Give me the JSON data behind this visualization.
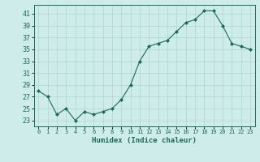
{
  "x": [
    0,
    1,
    2,
    3,
    4,
    5,
    6,
    7,
    8,
    9,
    10,
    11,
    12,
    13,
    14,
    15,
    16,
    17,
    18,
    19,
    20,
    21,
    22,
    23
  ],
  "y": [
    28,
    27,
    24,
    25,
    23,
    24.5,
    24,
    24.5,
    25,
    26.5,
    29,
    33,
    35.5,
    36,
    36.5,
    38,
    39.5,
    40,
    41.5,
    41.5,
    39,
    36,
    35.5,
    35
  ],
  "line_color": "#1a6b5a",
  "marker": "D",
  "marker_size": 2.0,
  "bg_color": "#ceecea",
  "grid_color": "#aed4d0",
  "xlabel": "Humidex (Indice chaleur)",
  "ylim": [
    22,
    42.5
  ],
  "xlim": [
    -0.5,
    23.5
  ],
  "yticks": [
    23,
    25,
    27,
    29,
    31,
    33,
    35,
    37,
    39,
    41
  ],
  "xticks": [
    0,
    1,
    2,
    3,
    4,
    5,
    6,
    7,
    8,
    9,
    10,
    11,
    12,
    13,
    14,
    15,
    16,
    17,
    18,
    19,
    20,
    21,
    22,
    23
  ]
}
